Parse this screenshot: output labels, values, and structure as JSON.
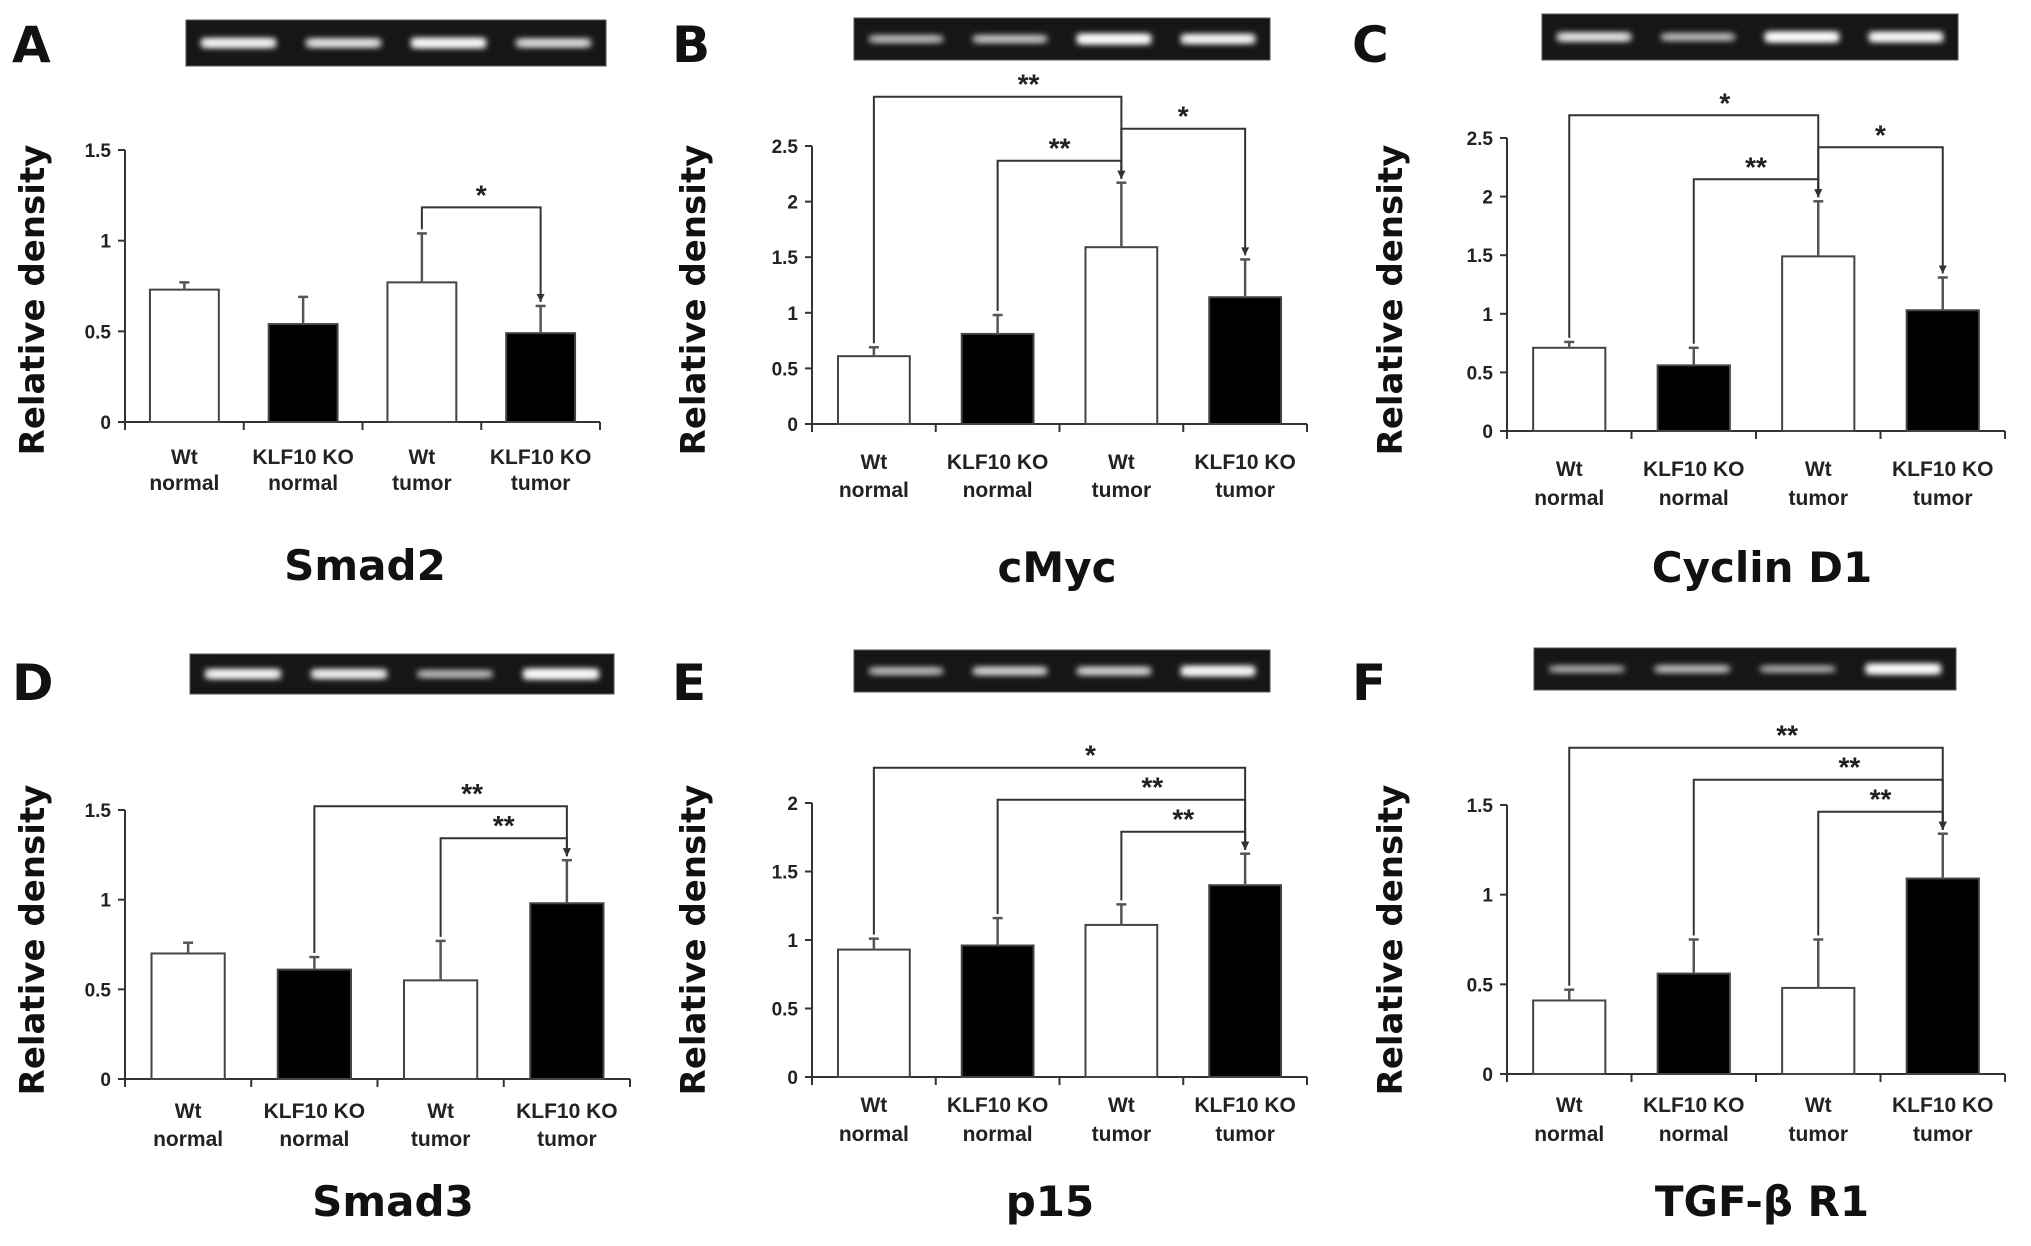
{
  "chart_data": [
    {
      "panel": "A",
      "type": "bar",
      "title": "Smad2",
      "ylabel": "Relative density",
      "ylim": [
        0,
        1.5
      ],
      "yticks": [
        "0",
        "0.5",
        "1",
        "1.5"
      ],
      "categories": [
        [
          "Wt",
          "normal"
        ],
        [
          "KLF10 KO",
          "normal"
        ],
        [
          "Wt",
          "tumor"
        ],
        [
          "KLF10 KO",
          "tumor"
        ]
      ],
      "values": [
        0.73,
        0.54,
        0.77,
        0.49
      ],
      "errors": [
        0.04,
        0.15,
        0.27,
        0.15
      ],
      "bar_fills": [
        "#ffffff",
        "#000000",
        "#ffffff",
        "#000000"
      ],
      "significance": [
        {
          "from": 2,
          "to": 3,
          "label": "*"
        }
      ],
      "gel_bands": [
        0.85,
        0.7,
        0.9,
        0.65
      ]
    },
    {
      "panel": "B",
      "type": "bar",
      "title": "cMyc",
      "ylabel": "Relative density",
      "ylim": [
        0,
        2.5
      ],
      "yticks": [
        "0",
        "0.5",
        "1",
        "1.5",
        "2",
        "2.5"
      ],
      "categories": [
        [
          "Wt",
          "normal"
        ],
        [
          "KLF10 KO",
          "normal"
        ],
        [
          "Wt",
          "tumor"
        ],
        [
          "KLF10 KO",
          "tumor"
        ]
      ],
      "values": [
        0.61,
        0.81,
        1.59,
        1.14
      ],
      "errors": [
        0.08,
        0.17,
        0.58,
        0.34
      ],
      "bar_fills": [
        "#ffffff",
        "#000000",
        "#ffffff",
        "#000000"
      ],
      "significance": [
        {
          "from": 0,
          "to": 2,
          "label": "**"
        },
        {
          "from": 1,
          "to": 2,
          "label": "**"
        },
        {
          "from": 2,
          "to": 3,
          "label": "*"
        }
      ],
      "gel_bands": [
        0.45,
        0.5,
        0.95,
        0.85
      ]
    },
    {
      "panel": "C",
      "type": "bar",
      "title": "Cyclin D1",
      "ylabel": "Relative density",
      "ylim": [
        0,
        2.5
      ],
      "yticks": [
        "0",
        "0.5",
        "1",
        "1.5",
        "2",
        "2.5"
      ],
      "categories": [
        [
          "Wt",
          "normal"
        ],
        [
          "KLF10 KO",
          "normal"
        ],
        [
          "Wt",
          "tumor"
        ],
        [
          "KLF10 KO",
          "tumor"
        ]
      ],
      "values": [
        0.71,
        0.56,
        1.49,
        1.03
      ],
      "errors": [
        0.05,
        0.15,
        0.47,
        0.28
      ],
      "bar_fills": [
        "#ffffff",
        "#000000",
        "#ffffff",
        "#000000"
      ],
      "significance": [
        {
          "from": 0,
          "to": 2,
          "label": "*"
        },
        {
          "from": 1,
          "to": 2,
          "label": "**"
        },
        {
          "from": 2,
          "to": 3,
          "label": "*"
        }
      ],
      "gel_bands": [
        0.7,
        0.45,
        0.95,
        0.9
      ]
    },
    {
      "panel": "D",
      "type": "bar",
      "title": "Smad3",
      "ylabel": "Relative density",
      "ylim": [
        0,
        1.5
      ],
      "yticks": [
        "0",
        "0.5",
        "1",
        "1.5"
      ],
      "categories": [
        [
          "Wt",
          "normal"
        ],
        [
          "KLF10 KO",
          "normal"
        ],
        [
          "Wt",
          "tumor"
        ],
        [
          "KLF10 KO",
          "tumor"
        ]
      ],
      "values": [
        0.7,
        0.61,
        0.55,
        0.98
      ],
      "errors": [
        0.06,
        0.07,
        0.22,
        0.24
      ],
      "bar_fills": [
        "#ffffff",
        "#000000",
        "#ffffff",
        "#000000"
      ],
      "significance": [
        {
          "from": 1,
          "to": 3,
          "label": "**"
        },
        {
          "from": 2,
          "to": 3,
          "label": "**"
        }
      ],
      "gel_bands": [
        0.85,
        0.8,
        0.45,
        0.95
      ]
    },
    {
      "panel": "E",
      "type": "bar",
      "title": "p15",
      "ylabel": "Relative density",
      "ylim": [
        0,
        2
      ],
      "yticks": [
        "0",
        "0.5",
        "1",
        "1.5",
        "2"
      ],
      "categories": [
        [
          "Wt",
          "normal"
        ],
        [
          "KLF10 KO",
          "normal"
        ],
        [
          "Wt",
          "tumor"
        ],
        [
          "KLF10 KO",
          "tumor"
        ]
      ],
      "values": [
        0.93,
        0.96,
        1.11,
        1.4
      ],
      "errors": [
        0.08,
        0.2,
        0.15,
        0.23
      ],
      "bar_fills": [
        "#ffffff",
        "#000000",
        "#ffffff",
        "#000000"
      ],
      "significance": [
        {
          "from": 0,
          "to": 3,
          "label": "*"
        },
        {
          "from": 1,
          "to": 3,
          "label": "**"
        },
        {
          "from": 2,
          "to": 3,
          "label": "**"
        }
      ],
      "gel_bands": [
        0.45,
        0.6,
        0.6,
        0.9
      ]
    },
    {
      "panel": "F",
      "type": "bar",
      "title": "TGF-β R1",
      "ylabel": "Relative density",
      "ylim": [
        0,
        1.5
      ],
      "yticks": [
        "0",
        "0.5",
        "1",
        "1.5"
      ],
      "categories": [
        [
          "Wt",
          "normal"
        ],
        [
          "KLF10 KO",
          "normal"
        ],
        [
          "Wt",
          "tumor"
        ],
        [
          "KLF10 KO",
          "tumor"
        ]
      ],
      "values": [
        0.41,
        0.56,
        0.48,
        1.09
      ],
      "errors": [
        0.06,
        0.19,
        0.27,
        0.25
      ],
      "bar_fills": [
        "#ffffff",
        "#000000",
        "#ffffff",
        "#000000"
      ],
      "significance": [
        {
          "from": 0,
          "to": 3,
          "label": "**"
        },
        {
          "from": 1,
          "to": 3,
          "label": "**"
        },
        {
          "from": 2,
          "to": 3,
          "label": "**"
        }
      ],
      "gel_bands": [
        0.35,
        0.45,
        0.35,
        0.95
      ]
    }
  ]
}
